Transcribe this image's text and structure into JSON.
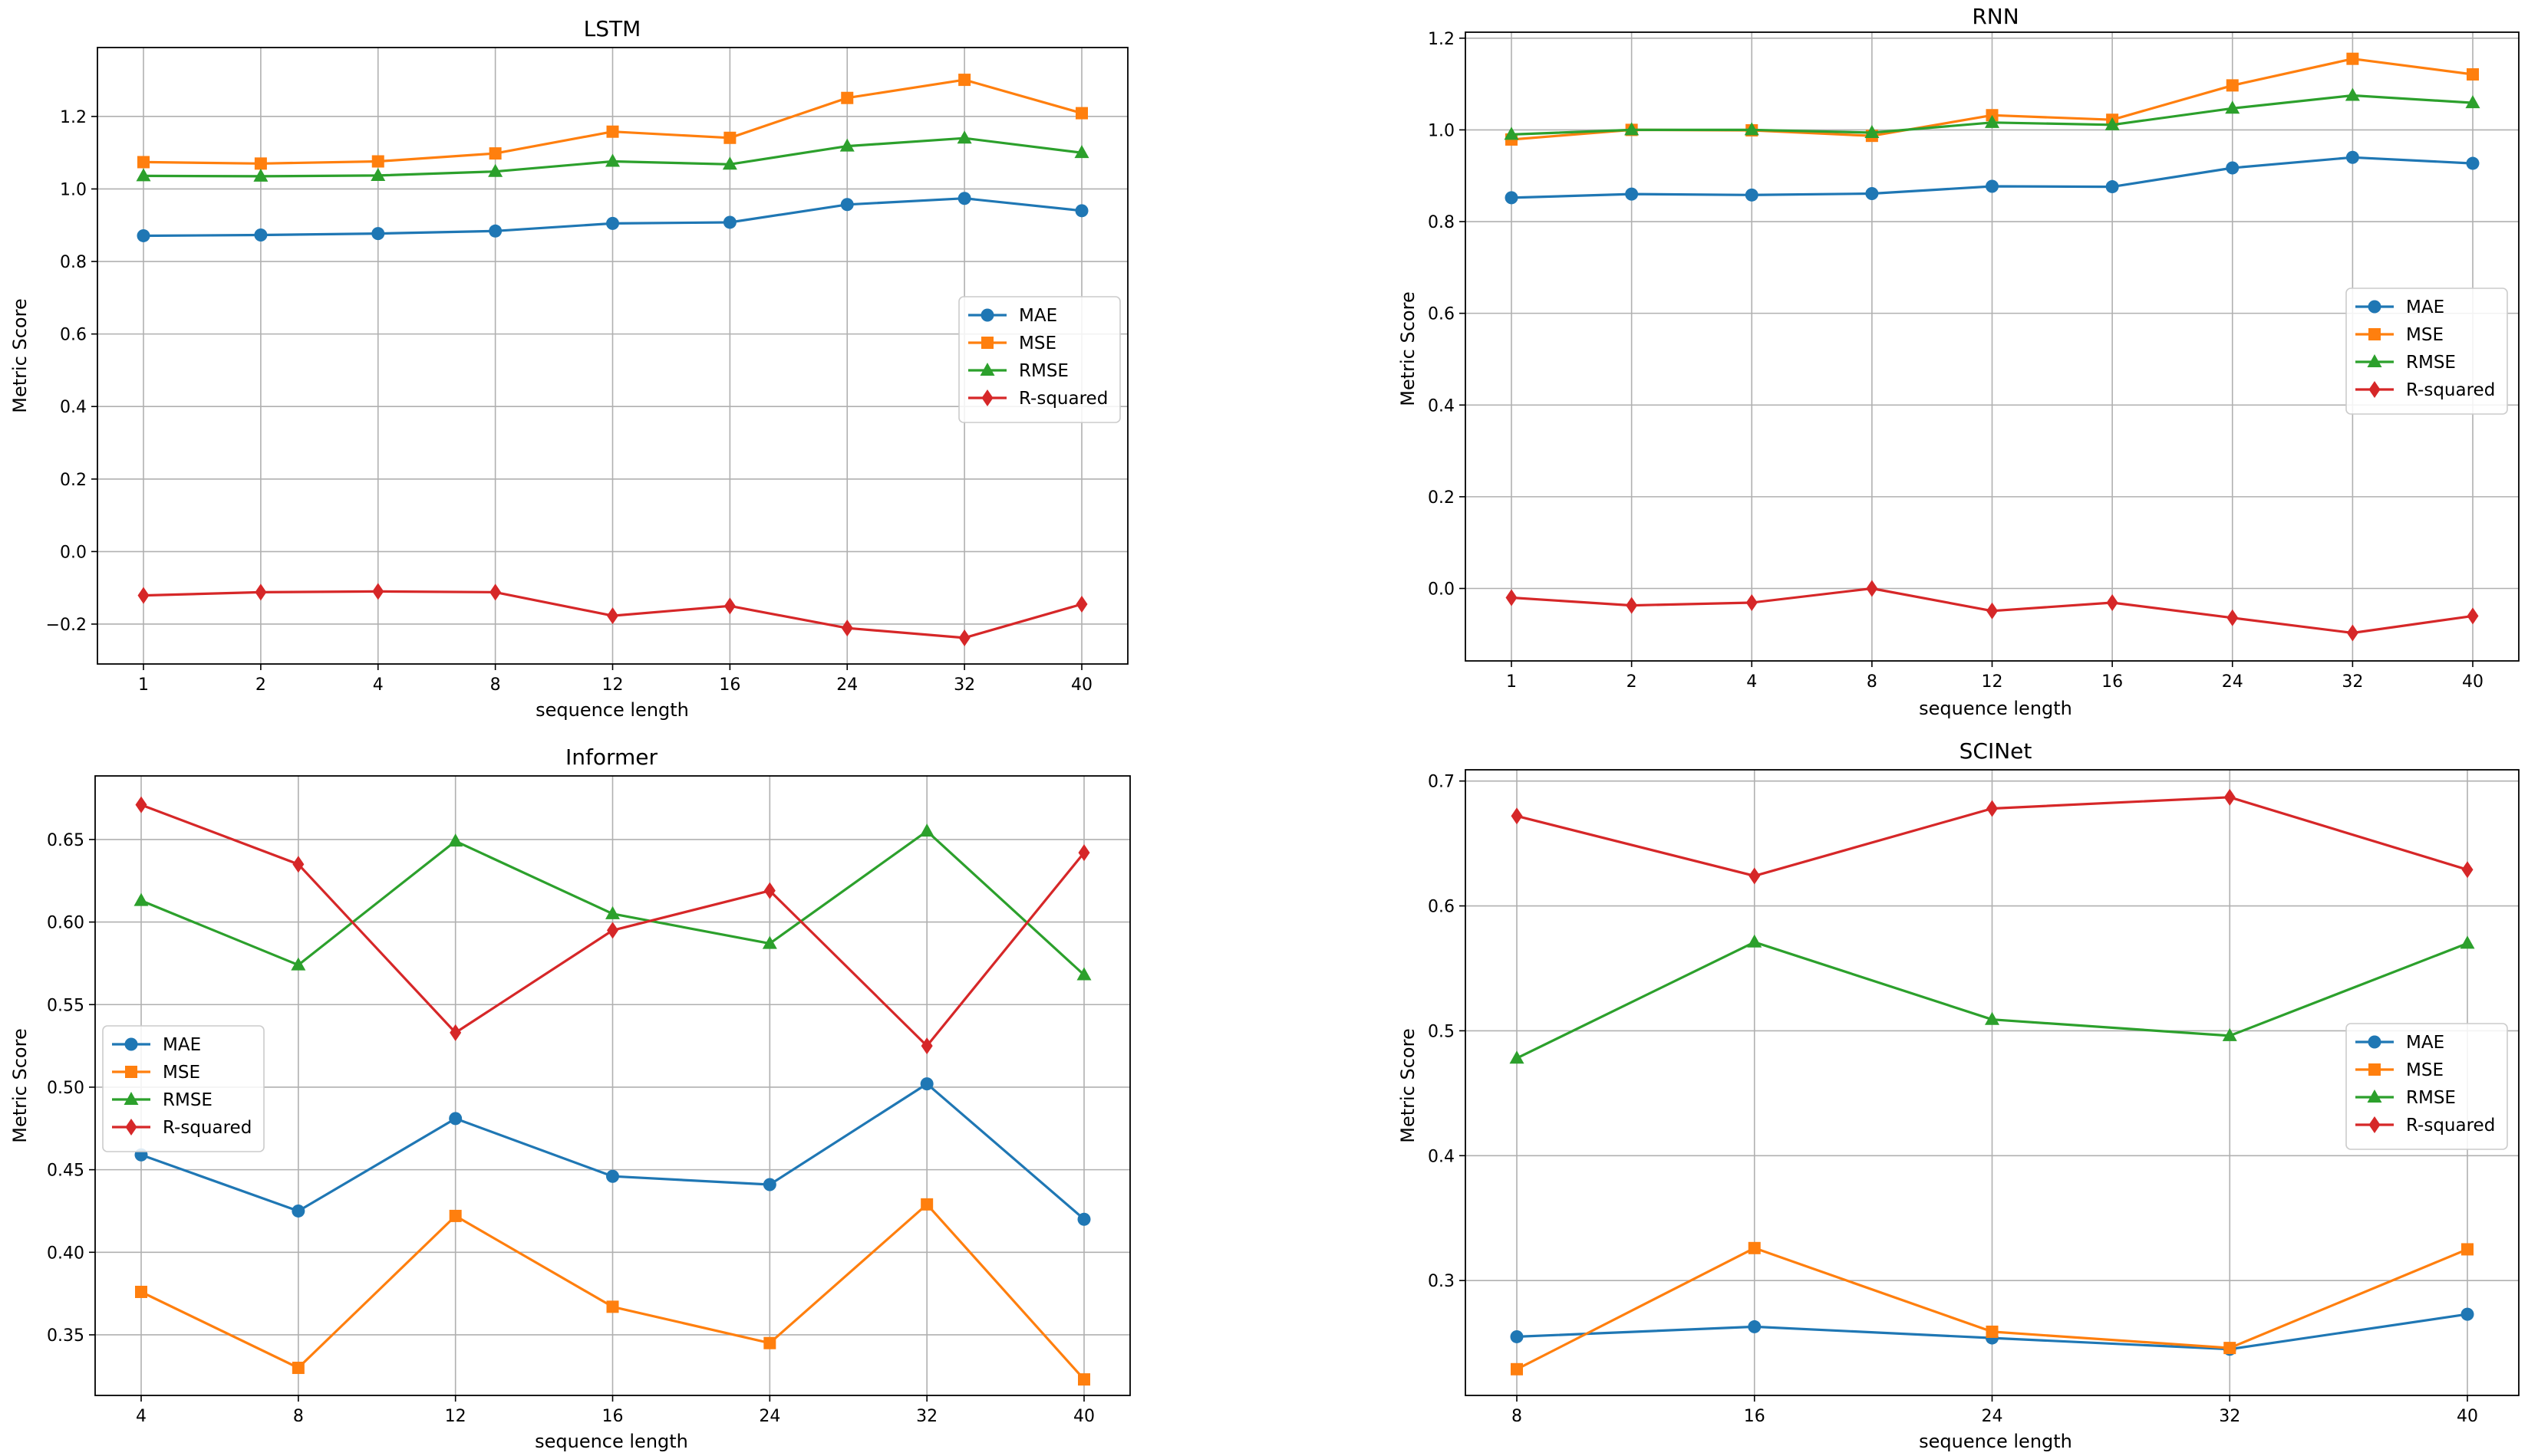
{
  "figure": {
    "background": "#ffffff"
  },
  "chart_data": [
    {
      "type": "line",
      "title": "LSTM",
      "xlabel": "sequence length",
      "ylabel": "Metric Score",
      "categories": [
        "1",
        "2",
        "4",
        "8",
        "12",
        "16",
        "24",
        "32",
        "40"
      ],
      "ylim": [
        -0.31,
        1.39
      ],
      "yticks": [
        -0.2,
        0.0,
        0.2,
        0.4,
        0.6,
        0.8,
        1.0,
        1.2
      ],
      "ytick_labels": [
        "−0.2",
        "0.0",
        "0.2",
        "0.4",
        "0.6",
        "0.8",
        "1.0",
        "1.2"
      ],
      "grid": true,
      "legend_position": "center-right",
      "series": [
        {
          "name": "MAE",
          "color": "#1f77b4",
          "marker": "circle",
          "values": [
            0.871,
            0.873,
            0.877,
            0.884,
            0.905,
            0.908,
            0.957,
            0.974,
            0.94
          ]
        },
        {
          "name": "MSE",
          "color": "#ff7f0e",
          "marker": "square",
          "values": [
            1.074,
            1.07,
            1.076,
            1.098,
            1.158,
            1.141,
            1.251,
            1.301,
            1.209
          ]
        },
        {
          "name": "RMSE",
          "color": "#2ca02c",
          "marker": "triangle",
          "values": [
            1.036,
            1.035,
            1.037,
            1.048,
            1.076,
            1.068,
            1.118,
            1.14,
            1.1
          ]
        },
        {
          "name": "R-squared",
          "color": "#d62728",
          "marker": "diamond",
          "values": [
            -0.121,
            -0.112,
            -0.11,
            -0.112,
            -0.177,
            -0.15,
            -0.211,
            -0.238,
            -0.145
          ]
        }
      ]
    },
    {
      "type": "line",
      "title": "RNN",
      "xlabel": "sequence length",
      "ylabel": "Metric Score",
      "categories": [
        "1",
        "2",
        "4",
        "8",
        "12",
        "16",
        "24",
        "32",
        "40"
      ],
      "ylim": [
        -0.158,
        1.213
      ],
      "yticks": [
        0.0,
        0.2,
        0.4,
        0.6,
        0.8,
        1.0,
        1.2
      ],
      "ytick_labels": [
        "0.0",
        "0.2",
        "0.4",
        "0.6",
        "0.8",
        "1.0",
        "1.2"
      ],
      "grid": true,
      "legend_position": "center-right",
      "series": [
        {
          "name": "MAE",
          "color": "#1f77b4",
          "marker": "circle",
          "values": [
            0.852,
            0.86,
            0.858,
            0.861,
            0.877,
            0.876,
            0.917,
            0.94,
            0.927
          ]
        },
        {
          "name": "MSE",
          "color": "#ff7f0e",
          "marker": "square",
          "values": [
            0.979,
            1.0,
            0.999,
            0.987,
            1.032,
            1.022,
            1.097,
            1.155,
            1.121
          ]
        },
        {
          "name": "RMSE",
          "color": "#2ca02c",
          "marker": "triangle",
          "values": [
            0.99,
            1.0,
            1.0,
            0.994,
            1.016,
            1.011,
            1.047,
            1.075,
            1.059
          ]
        },
        {
          "name": "R-squared",
          "color": "#d62728",
          "marker": "diamond",
          "values": [
            -0.02,
            -0.037,
            -0.031,
            0.0,
            -0.049,
            -0.031,
            -0.064,
            -0.097,
            -0.06
          ]
        }
      ]
    },
    {
      "type": "line",
      "title": "Informer",
      "xlabel": "sequence length",
      "ylabel": "Metric Score",
      "categories": [
        "4",
        "8",
        "12",
        "16",
        "24",
        "32",
        "40"
      ],
      "ylim": [
        0.3133,
        0.6885
      ],
      "yticks": [
        0.35,
        0.4,
        0.45,
        0.5,
        0.55,
        0.6,
        0.65
      ],
      "ytick_labels": [
        "0.35",
        "0.40",
        "0.45",
        "0.50",
        "0.55",
        "0.60",
        "0.65"
      ],
      "grid": true,
      "legend_position": "center-left",
      "series": [
        {
          "name": "MAE",
          "color": "#1f77b4",
          "marker": "circle",
          "values": [
            0.459,
            0.425,
            0.481,
            0.446,
            0.441,
            0.502,
            0.42
          ]
        },
        {
          "name": "MSE",
          "color": "#ff7f0e",
          "marker": "square",
          "values": [
            0.376,
            0.33,
            0.422,
            0.367,
            0.345,
            0.429,
            0.323
          ]
        },
        {
          "name": "RMSE",
          "color": "#2ca02c",
          "marker": "triangle",
          "values": [
            0.613,
            0.574,
            0.649,
            0.605,
            0.587,
            0.655,
            0.568
          ]
        },
        {
          "name": "R-squared",
          "color": "#d62728",
          "marker": "diamond",
          "values": [
            0.671,
            0.635,
            0.533,
            0.595,
            0.619,
            0.525,
            0.642
          ]
        }
      ]
    },
    {
      "type": "line",
      "title": "SCINet",
      "xlabel": "sequence length",
      "ylabel": "Metric Score",
      "categories": [
        "8",
        "16",
        "24",
        "32",
        "40"
      ],
      "ylim": [
        0.208,
        0.709
      ],
      "yticks": [
        0.3,
        0.4,
        0.5,
        0.6,
        0.7
      ],
      "ytick_labels": [
        "0.3",
        "0.4",
        "0.5",
        "0.6",
        "0.7"
      ],
      "grid": true,
      "legend_position": "center-right",
      "series": [
        {
          "name": "MAE",
          "color": "#1f77b4",
          "marker": "circle",
          "values": [
            0.255,
            0.263,
            0.254,
            0.245,
            0.273
          ]
        },
        {
          "name": "MSE",
          "color": "#ff7f0e",
          "marker": "square",
          "values": [
            0.229,
            0.326,
            0.259,
            0.246,
            0.325
          ]
        },
        {
          "name": "RMSE",
          "color": "#2ca02c",
          "marker": "triangle",
          "values": [
            0.478,
            0.571,
            0.509,
            0.496,
            0.57
          ]
        },
        {
          "name": "R-squared",
          "color": "#d62728",
          "marker": "diamond",
          "values": [
            0.672,
            0.624,
            0.678,
            0.687,
            0.629
          ]
        }
      ]
    }
  ]
}
